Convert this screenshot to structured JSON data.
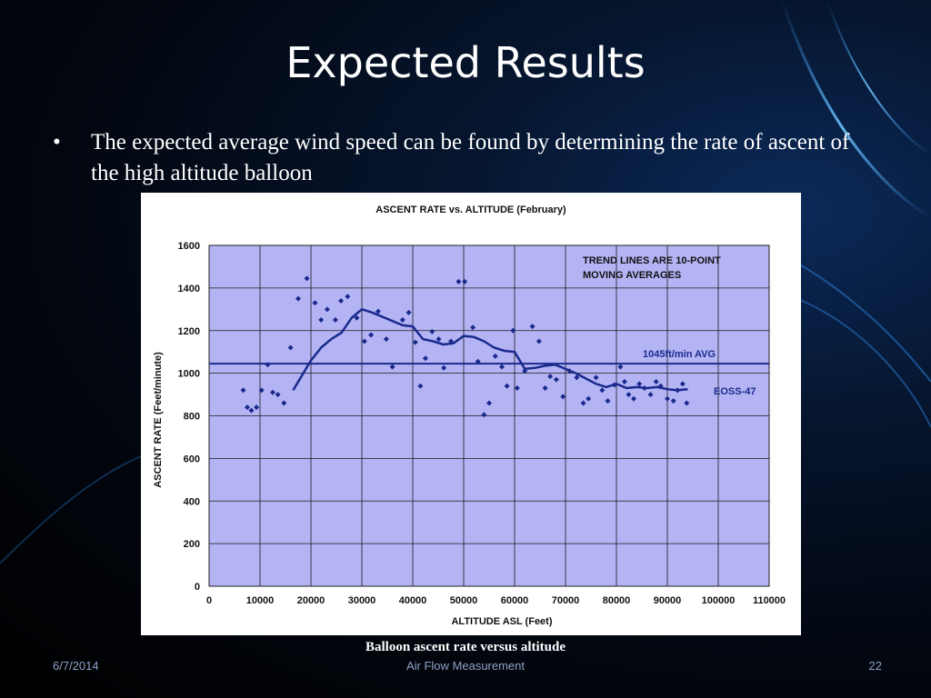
{
  "slide": {
    "title": "Expected Results",
    "bullet_marker": "•",
    "bullet_text": "The expected average wind speed can be found by determining the rate of ascent of the high altitude balloon",
    "caption": "Balloon ascent rate versus altitude",
    "footer_date": "6/7/2014",
    "footer_center": "Air Flow Measurement",
    "page_number": "22"
  },
  "colors": {
    "plot_bg": "#b4b4f5",
    "series": "#1a2a8c",
    "grid": "#1a1a1a"
  },
  "chart_data": {
    "type": "scatter",
    "title": "ASCENT RATE vs. ALTITUDE (February)",
    "xlabel": "ALTITUDE ASL (Feet)",
    "ylabel": "ASCENT RATE (Feet/minute)",
    "xlim": [
      0,
      110000
    ],
    "ylim": [
      0,
      1600
    ],
    "xticks": [
      0,
      10000,
      20000,
      30000,
      40000,
      50000,
      60000,
      70000,
      80000,
      90000,
      100000,
      110000
    ],
    "yticks": [
      0,
      200,
      400,
      600,
      800,
      1000,
      1200,
      1400,
      1600
    ],
    "grid": true,
    "annotations": {
      "trend_note_line1": "TREND LINES ARE 10-POINT",
      "trend_note_line2": "MOVING AVERAGES",
      "avg_label": "1045ft/min AVG",
      "series_label": "EOSS-47"
    },
    "average_line": 1045,
    "points": [
      [
        6700,
        920
      ],
      [
        7500,
        840
      ],
      [
        8300,
        825
      ],
      [
        9300,
        840
      ],
      [
        10300,
        920
      ],
      [
        11500,
        1040
      ],
      [
        12500,
        910
      ],
      [
        13500,
        900
      ],
      [
        14700,
        860
      ],
      [
        16000,
        1120
      ],
      [
        17500,
        1350
      ],
      [
        19200,
        1445
      ],
      [
        20800,
        1330
      ],
      [
        22000,
        1250
      ],
      [
        23200,
        1300
      ],
      [
        24800,
        1250
      ],
      [
        25900,
        1340
      ],
      [
        27200,
        1360
      ],
      [
        29000,
        1260
      ],
      [
        30500,
        1150
      ],
      [
        31800,
        1180
      ],
      [
        33200,
        1290
      ],
      [
        34800,
        1160
      ],
      [
        36000,
        1030
      ],
      [
        38000,
        1250
      ],
      [
        39200,
        1285
      ],
      [
        40500,
        1145
      ],
      [
        41500,
        940
      ],
      [
        42500,
        1070
      ],
      [
        43800,
        1195
      ],
      [
        45100,
        1160
      ],
      [
        46100,
        1025
      ],
      [
        47500,
        1150
      ],
      [
        49000,
        1430
      ],
      [
        50200,
        1430
      ],
      [
        51800,
        1215
      ],
      [
        52800,
        1055
      ],
      [
        54000,
        805
      ],
      [
        55000,
        860
      ],
      [
        56200,
        1080
      ],
      [
        57500,
        1030
      ],
      [
        58500,
        940
      ],
      [
        59700,
        1200
      ],
      [
        60500,
        930
      ],
      [
        62000,
        1010
      ],
      [
        63500,
        1220
      ],
      [
        64800,
        1150
      ],
      [
        66000,
        930
      ],
      [
        67000,
        985
      ],
      [
        68200,
        970
      ],
      [
        69500,
        890
      ],
      [
        70800,
        1010
      ],
      [
        72200,
        980
      ],
      [
        73500,
        860
      ],
      [
        74500,
        880
      ],
      [
        76000,
        980
      ],
      [
        77200,
        920
      ],
      [
        78300,
        870
      ],
      [
        79600,
        945
      ],
      [
        80800,
        1030
      ],
      [
        81600,
        960
      ],
      [
        82400,
        900
      ],
      [
        83400,
        880
      ],
      [
        84500,
        950
      ],
      [
        85500,
        930
      ],
      [
        86700,
        900
      ],
      [
        87800,
        960
      ],
      [
        88700,
        940
      ],
      [
        90000,
        880
      ],
      [
        91200,
        870
      ],
      [
        92000,
        920
      ],
      [
        93000,
        950
      ],
      [
        93800,
        860
      ]
    ],
    "trend_line": [
      [
        16500,
        920
      ],
      [
        18000,
        980
      ],
      [
        20000,
        1060
      ],
      [
        22000,
        1120
      ],
      [
        24000,
        1160
      ],
      [
        26000,
        1190
      ],
      [
        28000,
        1260
      ],
      [
        30000,
        1300
      ],
      [
        32000,
        1285
      ],
      [
        34000,
        1265
      ],
      [
        36000,
        1245
      ],
      [
        38000,
        1225
      ],
      [
        40000,
        1220
      ],
      [
        42000,
        1160
      ],
      [
        44000,
        1150
      ],
      [
        46000,
        1135
      ],
      [
        48000,
        1140
      ],
      [
        50000,
        1175
      ],
      [
        52000,
        1170
      ],
      [
        54000,
        1150
      ],
      [
        56000,
        1120
      ],
      [
        58000,
        1105
      ],
      [
        60000,
        1100
      ],
      [
        62000,
        1020
      ],
      [
        64000,
        1025
      ],
      [
        66000,
        1035
      ],
      [
        68000,
        1040
      ],
      [
        70000,
        1020
      ],
      [
        72000,
        1000
      ],
      [
        74000,
        975
      ],
      [
        76000,
        950
      ],
      [
        78000,
        935
      ],
      [
        80000,
        950
      ],
      [
        82000,
        930
      ],
      [
        84000,
        935
      ],
      [
        86000,
        930
      ],
      [
        88000,
        935
      ],
      [
        90000,
        925
      ],
      [
        92000,
        920
      ],
      [
        94000,
        925
      ]
    ]
  }
}
